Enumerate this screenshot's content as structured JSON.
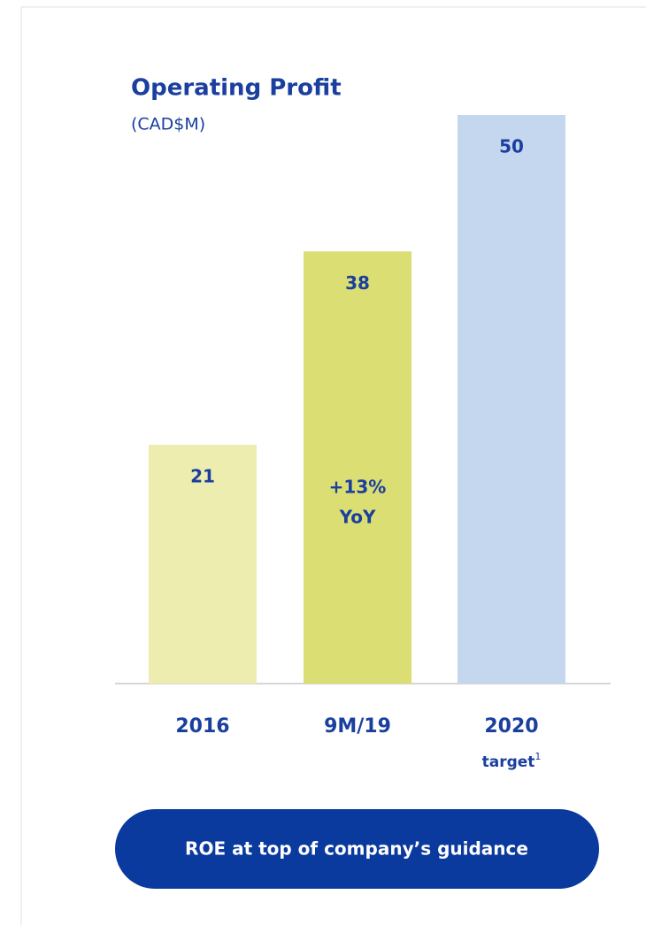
{
  "chart_data": {
    "type": "bar",
    "title": "Operating Profit",
    "subtitle": "(CAD$M)",
    "categories": [
      "2016",
      "9M/19",
      "2020"
    ],
    "values": [
      21,
      38,
      50
    ],
    "colors": [
      "#eeedb0",
      "#dbde72",
      "#c5d7ee"
    ],
    "annotations": [
      {
        "category": "9M/19",
        "lines": [
          "+13%",
          "YoY"
        ]
      }
    ],
    "category_notes": [
      {
        "category": "2020",
        "text": "target",
        "superscript": "1"
      }
    ],
    "callout": "ROE at top of company’s guidance"
  }
}
